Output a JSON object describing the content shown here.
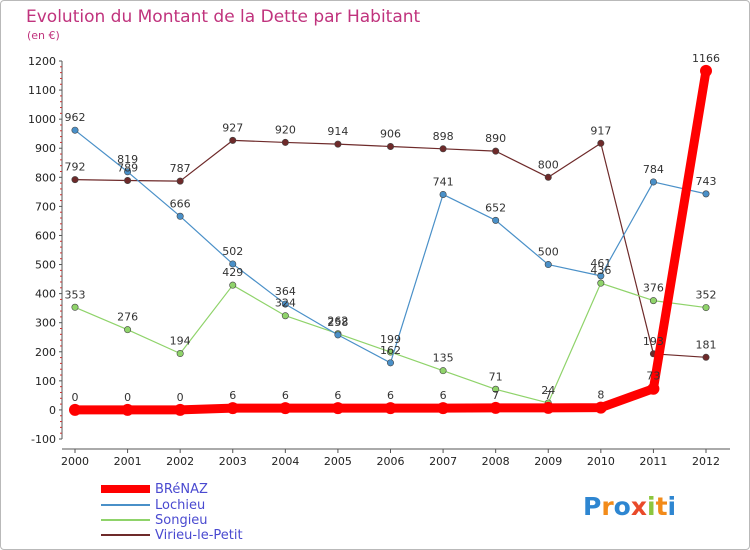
{
  "chart_data": {
    "type": "line",
    "title": "Evolution du Montant de la Dette par Habitant",
    "subtitle": "(en €)",
    "x": [
      "2000",
      "2001",
      "2002",
      "2003",
      "2004",
      "2005",
      "2006",
      "2007",
      "2008",
      "2009",
      "2010",
      "2011",
      "2012"
    ],
    "ylim": [
      -100,
      1200
    ],
    "yticks": [
      -100,
      0,
      100,
      200,
      300,
      400,
      500,
      600,
      700,
      800,
      900,
      1000,
      1100,
      1200
    ],
    "grid": false,
    "legend_position": "bottom-left",
    "series": [
      {
        "name": "BRéNAZ",
        "color": "#ff0000",
        "values": [
          0,
          0,
          0,
          6,
          6,
          6,
          6,
          6,
          7,
          7,
          8,
          73,
          1166
        ],
        "labels": [
          "0",
          "0",
          "0",
          "6",
          "6",
          "6",
          "6",
          "6",
          "7",
          "7",
          "8",
          "73",
          "1166"
        ]
      },
      {
        "name": "Lochieu",
        "color": "#4a90c8",
        "values": [
          962,
          819,
          666,
          502,
          364,
          258,
          162,
          741,
          652,
          500,
          461,
          784,
          743
        ],
        "labels": [
          "962",
          "819",
          "666",
          "502",
          "364",
          "258",
          "162",
          "741",
          "652",
          "500",
          "461",
          "784",
          "743"
        ]
      },
      {
        "name": "Songieu",
        "color": "#8fd36a",
        "values": [
          353,
          276,
          194,
          429,
          324,
          262,
          199,
          135,
          71,
          24,
          436,
          376,
          352
        ],
        "labels": [
          "353",
          "276",
          "194",
          "429",
          "324",
          "262",
          "199",
          "135",
          "71",
          "24",
          "436",
          "376",
          "352"
        ]
      },
      {
        "name": "Virieu-le-Petit",
        "color": "#6e2a2a",
        "values": [
          792,
          789,
          787,
          927,
          920,
          914,
          906,
          898,
          890,
          800,
          917,
          193,
          181
        ],
        "labels": [
          "792",
          "789",
          "787",
          "927",
          "920",
          "914",
          "906",
          "898",
          "890",
          "800",
          "917",
          "193",
          "181"
        ]
      }
    ]
  },
  "logo": {
    "letters": [
      "P",
      "r",
      "o",
      "x",
      "i",
      "t",
      "i"
    ],
    "colors": [
      "#2e86d1",
      "#f28b1a",
      "#2e86d1",
      "#e94a2a",
      "#8cc63e",
      "#f28b1a",
      "#2e86d1"
    ]
  }
}
